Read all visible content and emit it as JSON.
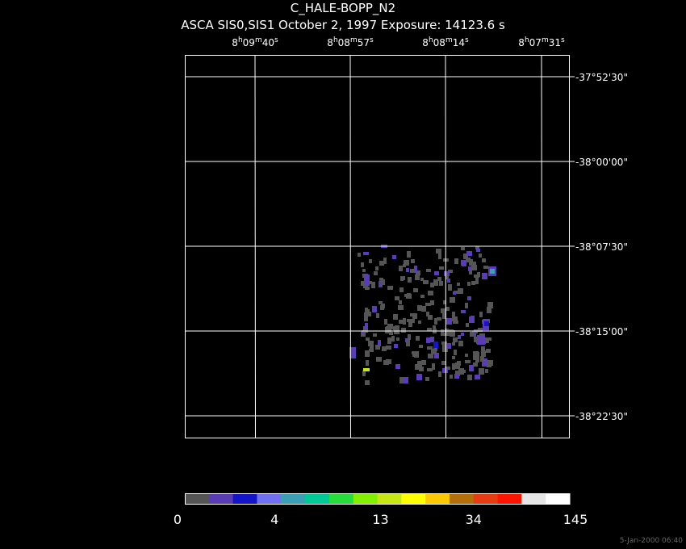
{
  "title": "C_HALE-BOPP_N2",
  "subtitle": "ASCA SIS0,SIS1 October 2, 1997 Exposure: 14123.6 s",
  "ra_labels": [
    "8h09m40s",
    "8h08m57s",
    "8h08m14s",
    "8h07m31s"
  ],
  "dec_labels": [
    "-37°52'30\"",
    "-38°00'00\"",
    "-38°07'30\"",
    "-38°15'00\"",
    "-38°22'30\""
  ],
  "colorbar": {
    "colors": [
      "#555555",
      "#5a3cb4",
      "#1414c8",
      "#7070f0",
      "#3ca0b4",
      "#00c896",
      "#28dc3c",
      "#82f000",
      "#c8e614",
      "#ffff00",
      "#ffc800",
      "#b46e0a",
      "#e63c14",
      "#ff1400",
      "#e6e6e6",
      "#ffffff"
    ],
    "ticks": [
      0,
      4,
      13,
      34,
      145
    ]
  },
  "timestamp": "5-Jan-2000 06:40"
}
